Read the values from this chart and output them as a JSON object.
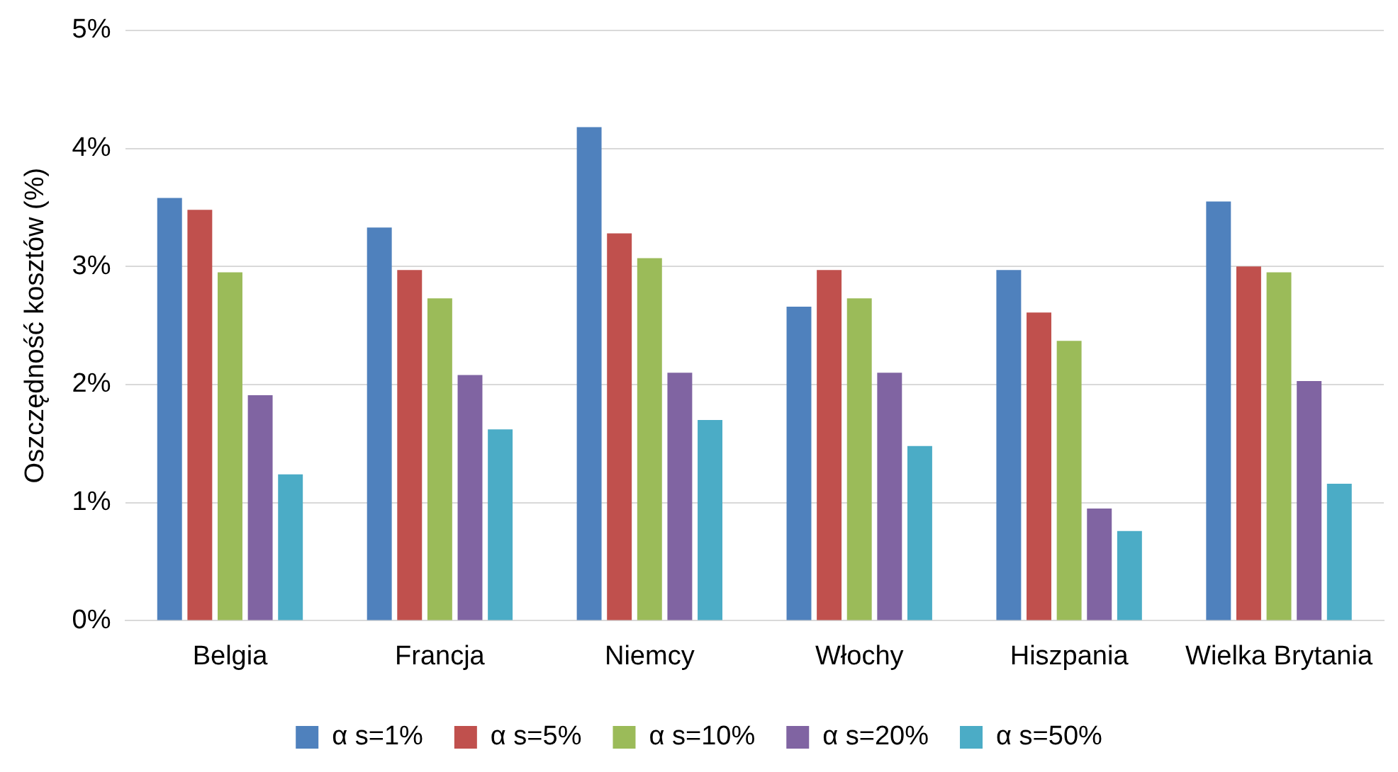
{
  "chart_data": {
    "type": "bar",
    "ylabel": "Oszczędność kosztów (%)",
    "categories": [
      "Belgia",
      "Francja",
      "Niemcy",
      "Włochy",
      "Hiszpania",
      "Wielka Brytania"
    ],
    "series": [
      {
        "name": "α s=1%",
        "color": "#4f81bd",
        "values": [
          3.58,
          3.33,
          4.18,
          2.66,
          2.97,
          3.55
        ]
      },
      {
        "name": "α s=5%",
        "color": "#c0504d",
        "values": [
          3.48,
          2.97,
          3.28,
          2.97,
          2.61,
          3.0
        ]
      },
      {
        "name": "α s=10%",
        "color": "#9bbb59",
        "values": [
          2.95,
          2.73,
          3.07,
          2.73,
          2.37,
          2.95
        ]
      },
      {
        "name": "α s=20%",
        "color": "#8064a2",
        "values": [
          1.91,
          2.08,
          2.1,
          2.1,
          0.95,
          2.03
        ]
      },
      {
        "name": "α s=50%",
        "color": "#4bacc6",
        "values": [
          1.24,
          1.62,
          1.7,
          1.48,
          0.76,
          1.16
        ]
      }
    ],
    "ylim": [
      0,
      5
    ],
    "yticks": [
      {
        "value": 0,
        "label": "0%"
      },
      {
        "value": 1,
        "label": "1%"
      },
      {
        "value": 2,
        "label": "2%"
      },
      {
        "value": 3,
        "label": "3%"
      },
      {
        "value": 4,
        "label": "4%"
      },
      {
        "value": 5,
        "label": "5%"
      }
    ],
    "grid": "y",
    "legend": "bottom"
  }
}
